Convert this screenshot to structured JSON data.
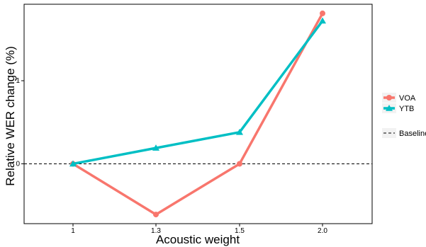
{
  "chart_data": {
    "type": "line",
    "title": "",
    "xlabel": "Acoustic weight",
    "ylabel": "Relative WER change (%)",
    "x": [
      "1",
      "1.3",
      "1.5",
      "2.0"
    ],
    "ylim": [
      -0.72,
      1.92
    ],
    "yticks": [
      0,
      1
    ],
    "grid": false,
    "legend_position": "right",
    "series": [
      {
        "name": "VOA",
        "values": [
          0.0,
          -0.61,
          0.0,
          1.81
        ],
        "color": "#F8766D",
        "marker": "circle"
      },
      {
        "name": "YTB",
        "values": [
          0.0,
          0.19,
          0.38,
          1.72
        ],
        "color": "#00BFC4",
        "marker": "triangle"
      }
    ],
    "baseline": {
      "name": "Baseline",
      "value": 0,
      "style": "dashed",
      "color": "#000000"
    }
  }
}
